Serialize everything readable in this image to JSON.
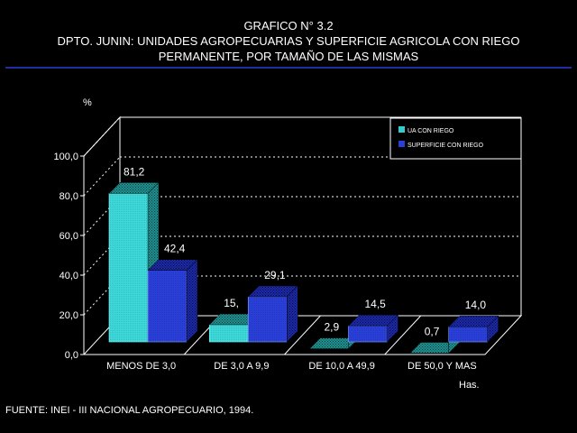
{
  "header": {
    "title_line1": "GRAFICO N° 3.2",
    "title_line2": "DPTO. JUNIN: UNIDADES AGROPECUARIAS Y SUPERFICIE AGRICOLA CON RIEGO",
    "title_line3": "PERMANENTE, POR TAMAÑO DE LAS MISMAS"
  },
  "footer": {
    "source": "FUENTE: INEI - III NACIONAL AGROPECUARIO, 1994."
  },
  "chart_data": {
    "type": "bar",
    "ylabel": "%",
    "xlabel": "Has.",
    "ylim": [
      0,
      100
    ],
    "yticks": [
      "0,0",
      "20,0",
      "40,0",
      "60,0",
      "80,0",
      "100,0"
    ],
    "categories": [
      "MENOS DE 3,0",
      "DE 3,0 A 9,9",
      "DE 10,0 A 49,9",
      "DE 50,0 Y MAS"
    ],
    "series": [
      {
        "name": "UA CON RIEGO",
        "values": [
          81.2,
          15,
          2.9,
          0.7
        ],
        "labels": [
          "81,2",
          "15,",
          "2,9",
          "0,7"
        ],
        "color": "#33cccc"
      },
      {
        "name": "SUPERFICIE CON RIEGO",
        "values": [
          42.4,
          29.1,
          14.5,
          14.0
        ],
        "labels": [
          "42,4",
          "29,1",
          "14,5",
          "14,0"
        ],
        "color": "#2b3fd6"
      }
    ],
    "grid": true,
    "legend_position": "top-right"
  }
}
